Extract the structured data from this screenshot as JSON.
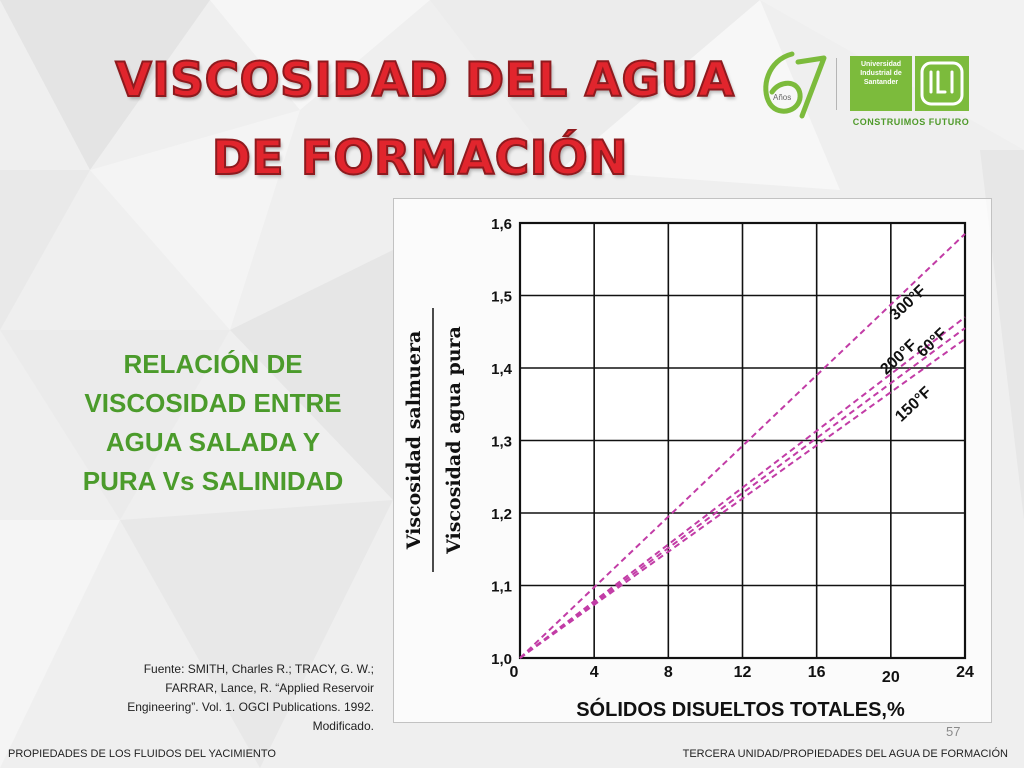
{
  "slide": {
    "title_line1": "VISCOSIDAD DEL AGUA",
    "title_line2": "DE FORMACIÓN",
    "subtitle_lines": [
      "RELACIÓN DE",
      "VISCOSIDAD ENTRE",
      "AGUA SALADA Y",
      "PURA Vs SALINIDAD"
    ],
    "source_lines": [
      "Fuente: SMITH, Charles R.; TRACY, G. W.;",
      "FARRAR, Lance, R. “Applied Reservoir",
      "Engineering”. Vol. 1. OGCI Publications. 1992.",
      "Modificado."
    ],
    "page_number": "57",
    "footer_left": "PROPIEDADES DE LOS FLUIDOS DEL YACIMIENTO",
    "footer_right": "TERCERA UNIDAD/PROPIEDADES DEL AGUA DE FORMACIÓN",
    "colors": {
      "title": "#e1252d",
      "subtitle": "#4b9b2b",
      "curve": "#c23ca6",
      "brand_green": "#7cbb3c"
    }
  },
  "logo": {
    "badge": "Años",
    "institution_lines": [
      "Universidad",
      "Industrial de",
      "Santander"
    ],
    "tagline": "CONSTRUIMOS FUTURO"
  },
  "chart_data": {
    "type": "line",
    "xlabel": "SÓLIDOS DISUELTOS TOTALES,%",
    "ylabel_numerator": "Viscosidad salmuera",
    "ylabel_denominator": "Viscosidad agua pura",
    "xlim": [
      0,
      24
    ],
    "ylim": [
      1.0,
      1.6
    ],
    "x_ticks": [
      0,
      4,
      8,
      12,
      16,
      20,
      24
    ],
    "x_tick_labels": [
      "0",
      "4",
      "8",
      "12",
      "16",
      "20",
      "24"
    ],
    "y_ticks": [
      1.0,
      1.1,
      1.2,
      1.3,
      1.4,
      1.5,
      1.6
    ],
    "y_tick_labels": [
      "1,0",
      "1,1",
      "1,2",
      "1,3",
      "1,4",
      "1,5",
      "1,6"
    ],
    "grid": true,
    "line_style": "dashed",
    "series": [
      {
        "name": "300°F",
        "x": [
          0,
          24
        ],
        "y": [
          1.0,
          1.585
        ]
      },
      {
        "name": "200°F",
        "x": [
          0,
          24
        ],
        "y": [
          1.0,
          1.47
        ]
      },
      {
        "name": "60°F",
        "x": [
          0,
          24
        ],
        "y": [
          1.0,
          1.455
        ]
      },
      {
        "name": "150°F",
        "x": [
          0,
          24
        ],
        "y": [
          1.0,
          1.44
        ]
      }
    ]
  }
}
